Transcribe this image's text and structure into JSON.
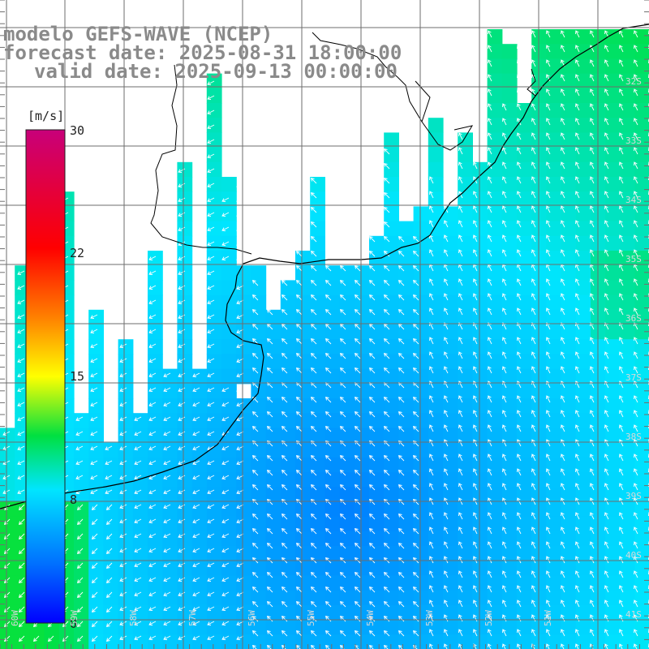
{
  "header": {
    "line1": "modelo GEFS-WAVE (NCEP)",
    "line2": "forecast date: 2025-08-31 18:00:00",
    "line3": "valid date: 2025-09-13 00:00:00"
  },
  "colorbar": {
    "unit": "[m/s]",
    "ticks": [
      "30",
      "22",
      "15",
      "8",
      "0"
    ],
    "tick_values": [
      30,
      22,
      15,
      8,
      0
    ],
    "stops": [
      "#0000ff",
      "#0078ff",
      "#00e5ff",
      "#00e030",
      "#ffff00",
      "#ff8000",
      "#ff0000",
      "#c8007a"
    ]
  },
  "map": {
    "variable": "wind speed",
    "lat_labels": [
      "32S",
      "33S",
      "34S",
      "35S",
      "36S",
      "37S",
      "38S",
      "39S",
      "40S",
      "41S"
    ],
    "lon_labels": [
      "60W",
      "59W",
      "58W",
      "57W",
      "56W",
      "55W",
      "54W",
      "53W",
      "52W",
      "51W"
    ],
    "colors": {
      "land": "#ffffff",
      "coast": "#000000",
      "grid": "#6e6e6e",
      "title": "#8a8a8a",
      "arrow": "#ffffff"
    }
  }
}
